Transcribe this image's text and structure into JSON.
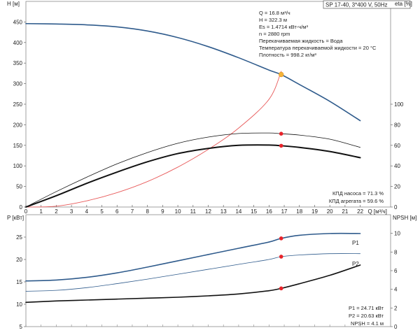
{
  "title_box": "SP 17-40, 3*400 V, 50Hz",
  "colors": {
    "head_curve": "#2f5b8c",
    "efficiency_curves": "#111111",
    "system_curve": "#e85a5a",
    "operating_point": "#e8232a",
    "operating_point_head": "#f4b43a",
    "power_curves": "#2f5b8c",
    "npsh_curve": "#111111"
  },
  "chart_data": [
    {
      "type": "line",
      "title": "",
      "xlabel": "Q [м³/ч]",
      "x_ticks": [
        0,
        1,
        2,
        3,
        4,
        5,
        6,
        7,
        8,
        9,
        10,
        11,
        12,
        13,
        14,
        15,
        16,
        17,
        18,
        19,
        20,
        21,
        22
      ],
      "xlim": [
        0,
        24
      ],
      "ylabel": "H [м]",
      "ylim": [
        0,
        500
      ],
      "y_ticks": [
        0,
        50,
        100,
        150,
        200,
        250,
        300,
        350,
        400,
        450
      ],
      "y2label": "eta [%]",
      "y2lim": [
        0,
        200
      ],
      "y2_ticks": [
        0,
        20,
        40,
        60,
        80,
        100
      ],
      "grid": false,
      "series": [
        {
          "key": "head",
          "axis": "y",
          "x": [
            0,
            2,
            4,
            6,
            8,
            10,
            12,
            14,
            16,
            16.8,
            18,
            20,
            22
          ],
          "y": [
            446,
            445,
            443,
            438,
            428,
            412,
            390,
            363,
            333,
            322,
            298,
            257,
            210
          ]
        },
        {
          "key": "system",
          "axis": "y",
          "x": [
            0,
            2,
            4,
            6,
            8,
            10,
            12,
            14,
            16,
            16.8
          ],
          "y": [
            0,
            2,
            15,
            35,
            62,
            97,
            140,
            192,
            262,
            330
          ]
        },
        {
          "key": "eta_pump",
          "axis": "y2",
          "x": [
            0,
            2,
            4,
            6,
            8,
            10,
            12,
            14,
            16,
            16.8,
            18,
            20,
            22
          ],
          "y": [
            0,
            15,
            29,
            42,
            53,
            62,
            68,
            71.5,
            72,
            71.3,
            70,
            66,
            58
          ]
        },
        {
          "key": "eta_unit",
          "axis": "y2",
          "x": [
            0,
            2,
            4,
            6,
            8,
            10,
            12,
            14,
            16,
            16.8,
            18,
            20,
            22
          ],
          "y": [
            0,
            11,
            23,
            34,
            44,
            52,
            57,
            60,
            60.3,
            59.6,
            58,
            54,
            48
          ]
        }
      ],
      "operating_points": [
        {
          "x": 16.8,
          "y": 322.3,
          "axis": "y"
        },
        {
          "x": 16.8,
          "y": 71.3,
          "axis": "y2"
        },
        {
          "x": 16.8,
          "y": 59.6,
          "axis": "y2"
        }
      ],
      "info_lines": [
        "Q = 16.8 м³/ч",
        "H = 322.3 м",
        "Es = 1.4714 кВт-ч/м³",
        "n = 2880 rpm",
        "Перекачиваемая жидкость = Вода",
        "Температура перекачиваемой жидкости = 20 °C",
        "Плотность = 998.2 кг/м³"
      ],
      "efficiency_lines": [
        "КПД насоса = 71.3 %",
        "КПД агрегата = 59.6 %"
      ]
    },
    {
      "type": "line",
      "title": "",
      "xlabel": "",
      "xlim": [
        0,
        24
      ],
      "ylabel": "P [кВт]",
      "ylim": [
        5,
        30
      ],
      "y_ticks": [
        5,
        10,
        15,
        20,
        25
      ],
      "y2label": "NPSH [м]",
      "y2lim": [
        0,
        12
      ],
      "y2_ticks": [
        0,
        2,
        4,
        6,
        8,
        10
      ],
      "grid": false,
      "series": [
        {
          "name": "P1",
          "key": "p1",
          "axis": "y",
          "x": [
            0,
            2,
            4,
            6,
            8,
            10,
            12,
            14,
            16,
            16.8,
            18,
            20,
            22
          ],
          "y": [
            15.2,
            15.4,
            16.0,
            17.0,
            18.3,
            19.7,
            21.1,
            22.5,
            23.9,
            24.71,
            25.4,
            25.8,
            25.8
          ]
        },
        {
          "name": "P2",
          "key": "p2",
          "axis": "y",
          "x": [
            0,
            2,
            4,
            6,
            8,
            10,
            12,
            14,
            16,
            16.8,
            18,
            20,
            22
          ],
          "y": [
            12.9,
            13.1,
            13.7,
            14.6,
            15.6,
            16.7,
            17.8,
            18.9,
            20.0,
            20.63,
            21.0,
            21.3,
            21.3
          ]
        },
        {
          "key": "npsh",
          "axis": "y2",
          "x": [
            0,
            2,
            4,
            6,
            8,
            10,
            12,
            14,
            16,
            16.8,
            18,
            20,
            22
          ],
          "y": [
            2.6,
            2.75,
            2.85,
            2.95,
            3.05,
            3.15,
            3.3,
            3.5,
            3.85,
            4.1,
            4.6,
            5.5,
            6.6
          ]
        }
      ],
      "operating_points": [
        {
          "x": 16.8,
          "y": 24.71,
          "axis": "y"
        },
        {
          "x": 16.8,
          "y": 20.63,
          "axis": "y"
        },
        {
          "x": 16.8,
          "y": 4.1,
          "axis": "y2"
        }
      ],
      "result_lines": [
        "P1 = 24.71 кВт",
        "P2 = 20.63 кВт",
        "NPSH = 4.1 м"
      ]
    }
  ]
}
